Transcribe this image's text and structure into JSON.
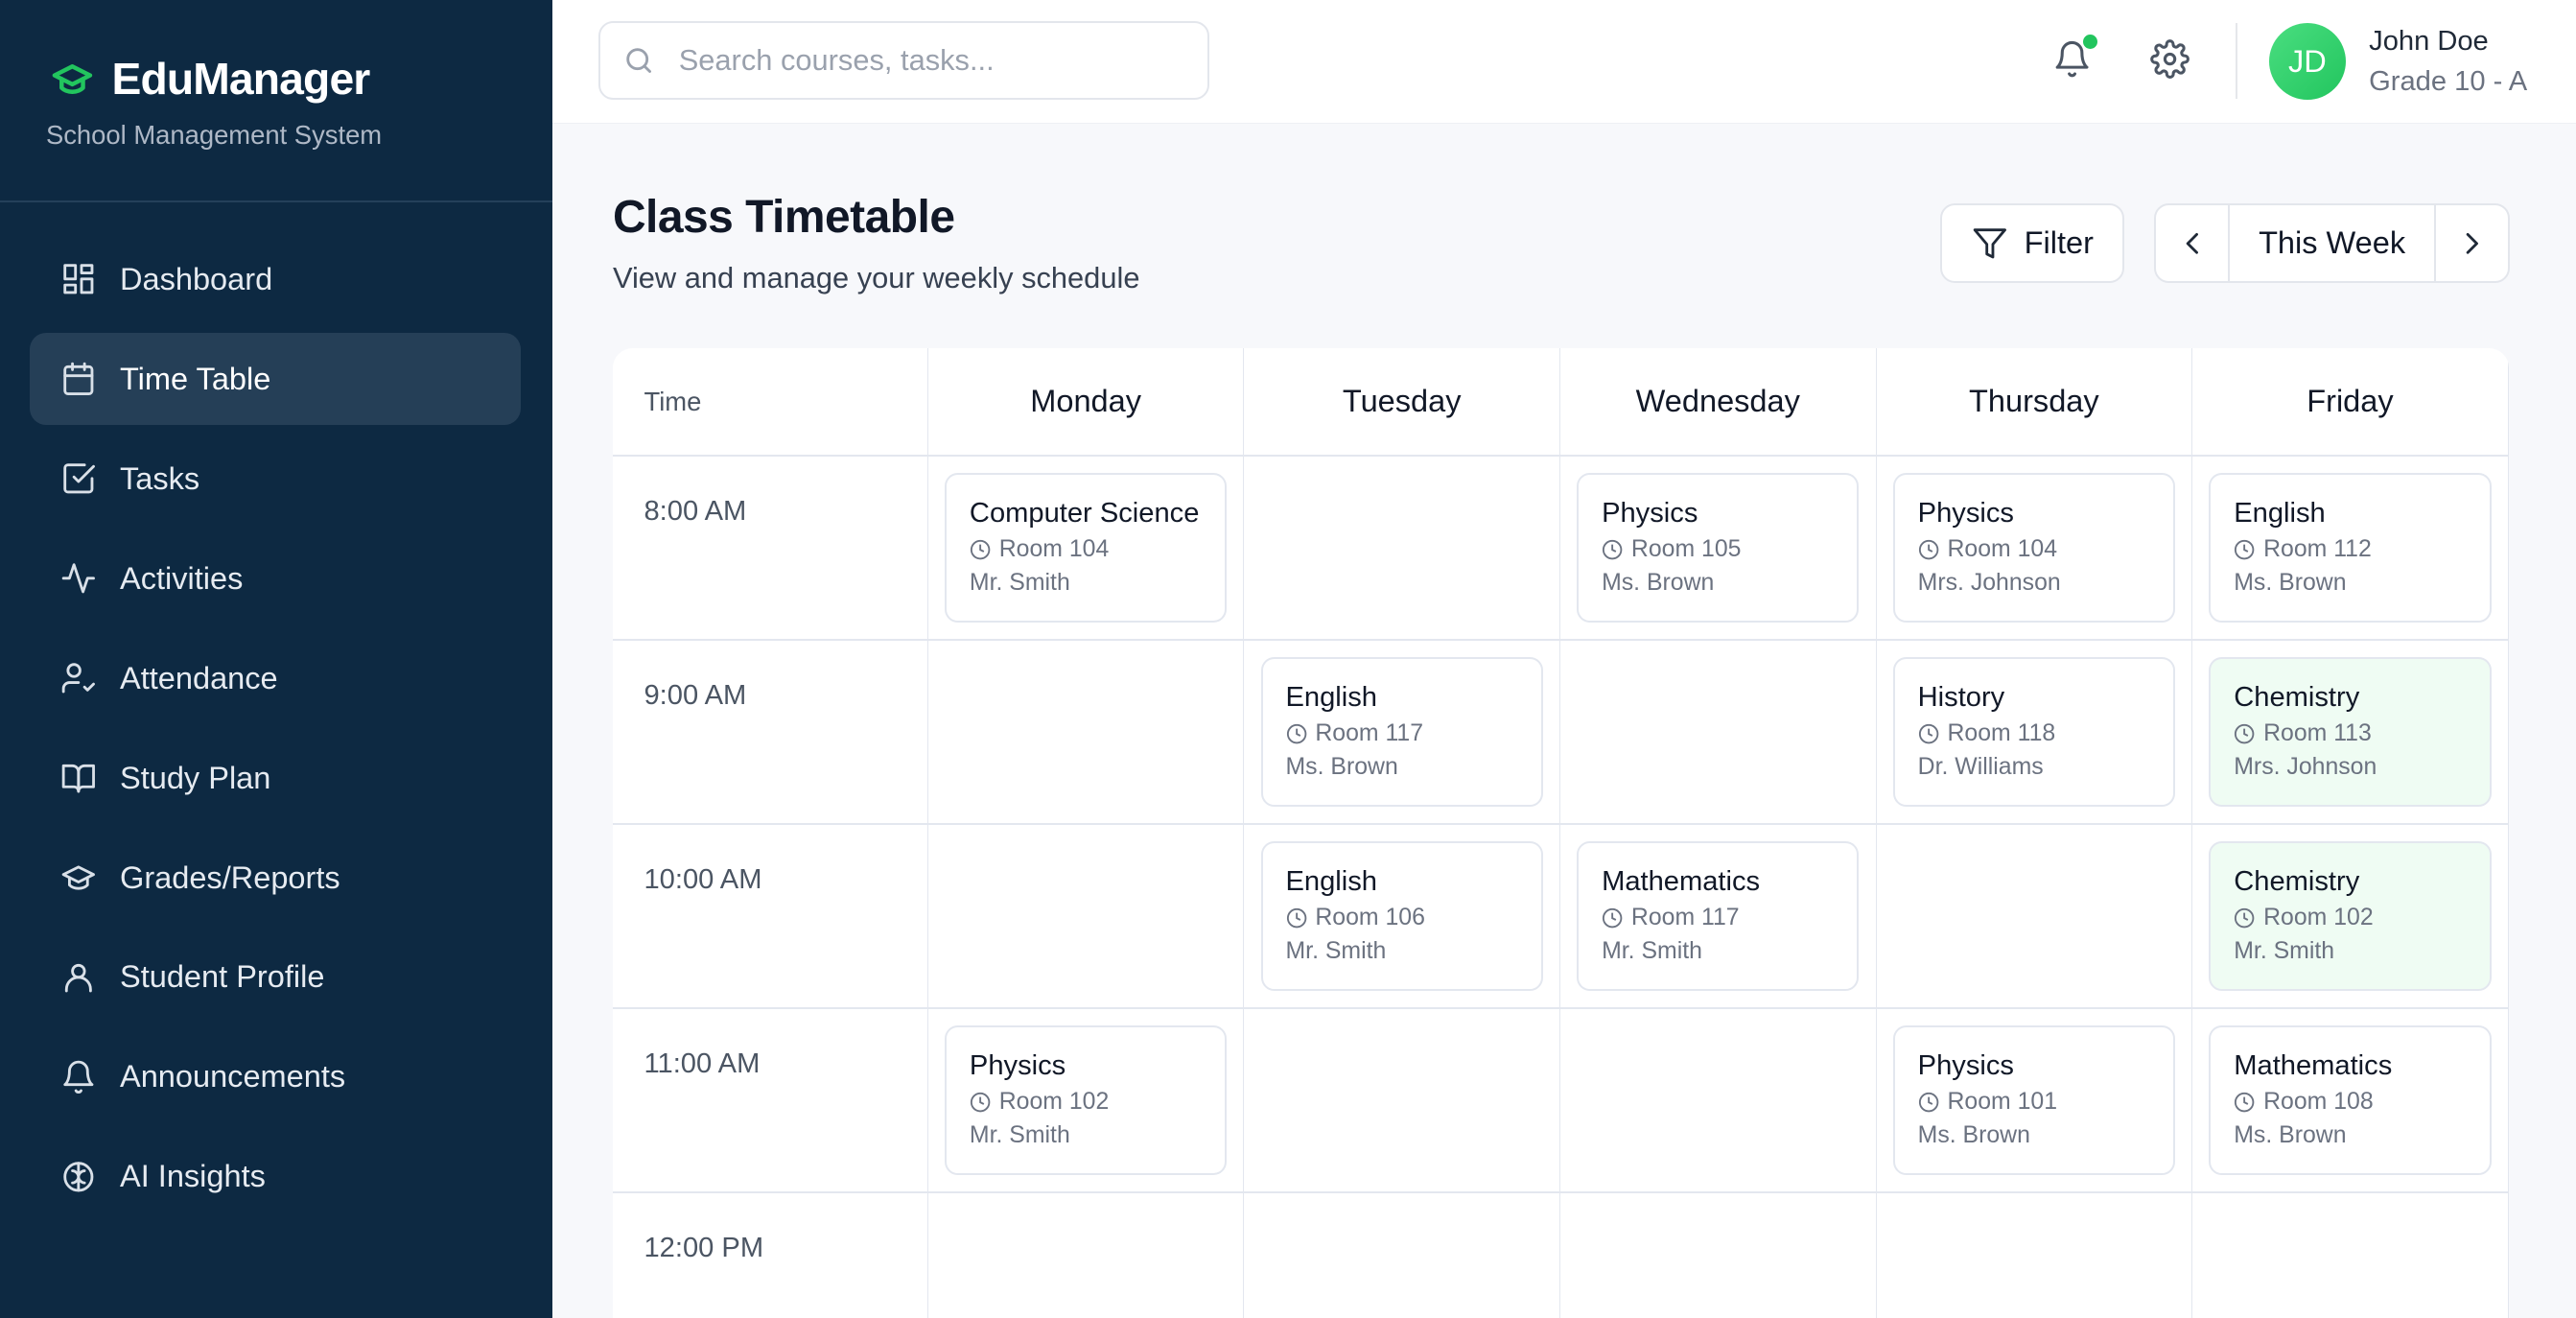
{
  "app": {
    "name": "EduManager",
    "subtitle": "School Management System",
    "accent": "#22c55e",
    "sidebar_bg": "#0d2942"
  },
  "sidebar": {
    "items": [
      {
        "label": "Dashboard",
        "icon": "dashboard-icon",
        "active": false
      },
      {
        "label": "Time Table",
        "icon": "calendar-icon",
        "active": true
      },
      {
        "label": "Tasks",
        "icon": "checkbox-icon",
        "active": false
      },
      {
        "label": "Activities",
        "icon": "activity-icon",
        "active": false
      },
      {
        "label": "Attendance",
        "icon": "user-check-icon",
        "active": false
      },
      {
        "label": "Study Plan",
        "icon": "book-icon",
        "active": false
      },
      {
        "label": "Grades/Reports",
        "icon": "graduation-cap-icon",
        "active": false
      },
      {
        "label": "Student Profile",
        "icon": "user-icon",
        "active": false
      },
      {
        "label": "Announcements",
        "icon": "bell-icon",
        "active": false
      },
      {
        "label": "AI Insights",
        "icon": "brain-icon",
        "active": false
      }
    ]
  },
  "header": {
    "search_placeholder": "Search courses, tasks...",
    "user": {
      "initials": "JD",
      "name": "John Doe",
      "grade": "Grade 10 - A"
    },
    "has_notifications": true
  },
  "page": {
    "title": "Class Timetable",
    "subtitle": "View and manage your weekly schedule",
    "filter_label": "Filter",
    "week_label": "This Week"
  },
  "timetable": {
    "time_header": "Time",
    "days": [
      "Monday",
      "Tuesday",
      "Wednesday",
      "Thursday",
      "Friday"
    ],
    "rows": [
      {
        "time": "8:00 AM",
        "slots": [
          {
            "subject": "Computer Science",
            "room": "Room 104",
            "teacher": "Mr. Smith"
          },
          null,
          {
            "subject": "Physics",
            "room": "Room 105",
            "teacher": "Ms. Brown"
          },
          {
            "subject": "Physics",
            "room": "Room 104",
            "teacher": "Mrs. Johnson"
          },
          {
            "subject": "English",
            "room": "Room 112",
            "teacher": "Ms. Brown"
          }
        ]
      },
      {
        "time": "9:00 AM",
        "slots": [
          null,
          {
            "subject": "English",
            "room": "Room 117",
            "teacher": "Ms. Brown"
          },
          null,
          {
            "subject": "History",
            "room": "Room 118",
            "teacher": "Dr. Williams"
          },
          {
            "subject": "Chemistry",
            "room": "Room 113",
            "teacher": "Mrs. Johnson",
            "highlight": true
          }
        ]
      },
      {
        "time": "10:00 AM",
        "slots": [
          null,
          {
            "subject": "English",
            "room": "Room 106",
            "teacher": "Mr. Smith"
          },
          {
            "subject": "Mathematics",
            "room": "Room 117",
            "teacher": "Mr. Smith"
          },
          null,
          {
            "subject": "Chemistry",
            "room": "Room 102",
            "teacher": "Mr. Smith",
            "highlight": true
          }
        ]
      },
      {
        "time": "11:00 AM",
        "slots": [
          {
            "subject": "Physics",
            "room": "Room 102",
            "teacher": "Mr. Smith"
          },
          null,
          null,
          {
            "subject": "Physics",
            "room": "Room 101",
            "teacher": "Ms. Brown"
          },
          {
            "subject": "Mathematics",
            "room": "Room 108",
            "teacher": "Ms. Brown"
          }
        ]
      },
      {
        "time": "12:00 PM",
        "slots": [
          null,
          null,
          null,
          null,
          null
        ]
      }
    ]
  }
}
